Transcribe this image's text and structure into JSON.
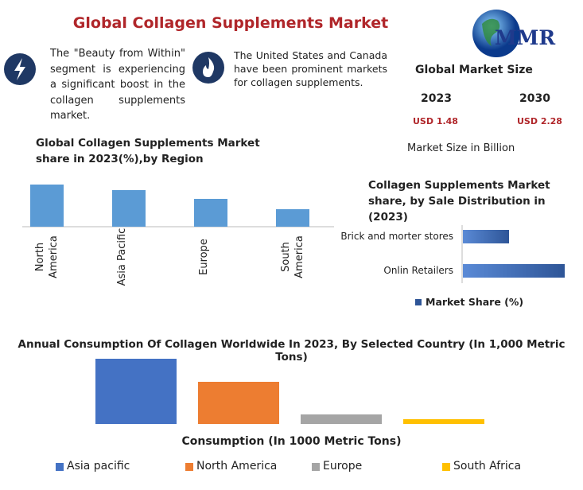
{
  "title": "Global Collagen Supplements Market",
  "logo": "MMR",
  "highlights": [
    "The \"Beauty from Within\" segment is experiencing a significant boost in the collagen supplements market.",
    "The United States and Canada have been prominent markets for collagen supplements."
  ],
  "market_size": {
    "title": "Global Market Size",
    "years": [
      "2023",
      "2030"
    ],
    "values": [
      "USD 1.48",
      "USD 2.28"
    ],
    "note": "Market Size in Billion"
  },
  "chart_data": [
    {
      "type": "bar",
      "title": "Global Collagen Supplements Market share in 2023(%),by Region",
      "categories": [
        "North America",
        "Asia Pacific",
        "Europe",
        "South America"
      ],
      "values": [
        36,
        31,
        24,
        15
      ],
      "color": "#5b9bd5"
    },
    {
      "type": "hbar",
      "title": "Collagen Supplements Market share, by Sale Distribution in (2023)",
      "categories": [
        "Brick and morter stores",
        "Onlin Retailers"
      ],
      "series": [
        {
          "name": "Market Share (%)",
          "color": "#2e5597",
          "values": [
            31,
            69
          ]
        }
      ]
    },
    {
      "type": "bar",
      "title": "Annual Consumption Of Collagen Worldwide In 2023, By Selected Country (In 1,000 Metric Tons)",
      "xlabel": "Consumption (In 1000 Metric Tons)",
      "series": [
        {
          "name": "Asia pacific",
          "color": "#4472c4",
          "values": [
            82
          ]
        },
        {
          "name": "North America",
          "color": "#ed7d31",
          "values": [
            53
          ]
        },
        {
          "name": "Europe",
          "color": "#a5a5a5",
          "values": [
            12
          ]
        },
        {
          "name": "South Africa",
          "color": "#ffc000",
          "values": [
            6
          ]
        }
      ]
    }
  ]
}
